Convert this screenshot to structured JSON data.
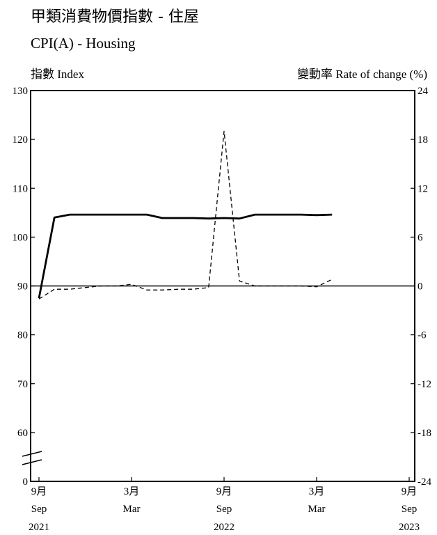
{
  "title_zh": "甲類消費物價指數 - 住屋",
  "title_en": "CPI(A) - Housing",
  "left_axis_label": "指數 Index",
  "right_axis_label": "變動率 Rate of change (%)",
  "chart_data": {
    "type": "line",
    "title": "甲類消費物價指數 - 住屋 CPI(A) - Housing",
    "y_left": {
      "label": "指數 Index",
      "range": [
        0,
        130
      ],
      "broken_below": 50,
      "ticks": [
        0,
        60,
        70,
        80,
        90,
        100,
        110,
        120,
        130
      ]
    },
    "y_right": {
      "label": "變動率 Rate of change (%)",
      "range": [
        -24,
        24
      ],
      "ticks": [
        -24,
        -18,
        -12,
        -6,
        0,
        6,
        12,
        18,
        24
      ]
    },
    "x_ticks": [
      {
        "month_zh": "9月",
        "month_en": "Sep",
        "year": "2021"
      },
      {
        "month_zh": "3月",
        "month_en": "Mar",
        "year": ""
      },
      {
        "month_zh": "9月",
        "month_en": "Sep",
        "year": "2022"
      },
      {
        "month_zh": "3月",
        "month_en": "Mar",
        "year": ""
      },
      {
        "month_zh": "9月",
        "month_en": "Sep",
        "year": "2023"
      }
    ],
    "x": [
      "2021-09",
      "2021-10",
      "2021-11",
      "2021-12",
      "2022-01",
      "2022-02",
      "2022-03",
      "2022-04",
      "2022-05",
      "2022-06",
      "2022-07",
      "2022-08",
      "2022-09",
      "2022-10",
      "2022-11",
      "2022-12",
      "2023-01",
      "2023-02",
      "2023-03",
      "2023-04"
    ],
    "series": [
      {
        "axis": "left",
        "style": "solid-thick",
        "values": [
          87.5,
          104.0,
          104.6,
          104.6,
          104.6,
          104.6,
          104.6,
          104.6,
          103.9,
          103.9,
          103.9,
          103.8,
          103.9,
          103.8,
          104.6,
          104.6,
          104.6,
          104.6,
          104.5,
          104.6
        ]
      },
      {
        "axis": "right",
        "style": "dashed",
        "values": [
          -1.6,
          -0.4,
          -0.4,
          -0.2,
          0.0,
          0.0,
          0.2,
          -0.5,
          -0.5,
          -0.4,
          -0.4,
          -0.2,
          19.0,
          0.6,
          0.0,
          0.0,
          0.0,
          0.0,
          -0.1,
          0.8
        ]
      }
    ]
  }
}
